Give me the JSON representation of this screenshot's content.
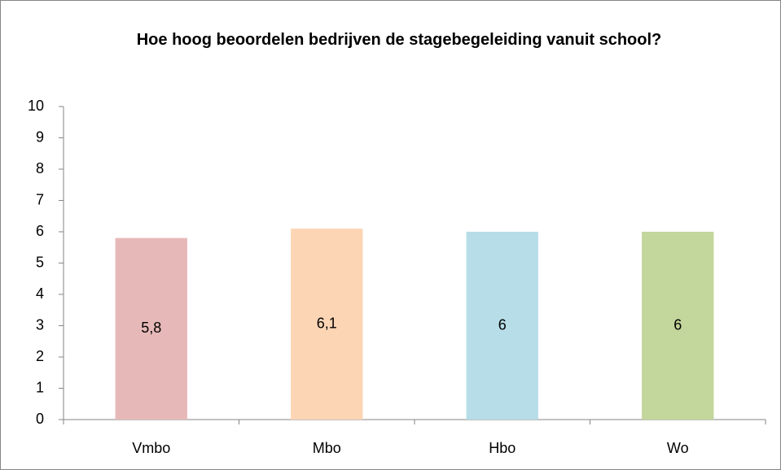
{
  "chart_data": {
    "type": "bar",
    "title": "Hoe hoog beoordelen bedrijven de stagebegeleiding vanuit school?",
    "categories": [
      "Vmbo",
      "Mbo",
      "Hbo",
      "Wo"
    ],
    "values": [
      5.8,
      6.1,
      6,
      6
    ],
    "value_labels": [
      "5,8",
      "6,1",
      "6",
      "6"
    ],
    "colors": [
      "#e6b9b8",
      "#fcd5b5",
      "#b7dde8",
      "#c3d69b"
    ],
    "ylim": [
      0,
      10
    ],
    "yticks": [
      0,
      1,
      2,
      3,
      4,
      5,
      6,
      7,
      8,
      9,
      10
    ],
    "grid": false
  }
}
